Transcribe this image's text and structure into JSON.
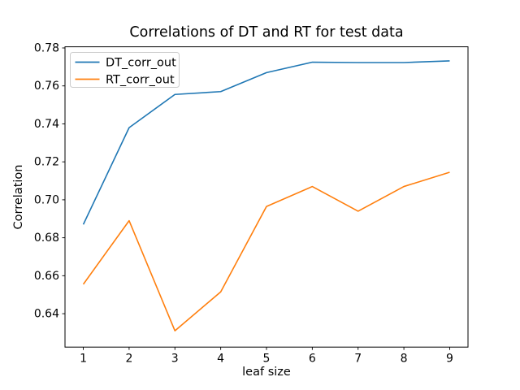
{
  "figure": {
    "background": "#ffffff"
  },
  "chart_data": {
    "type": "line",
    "title": "Correlations of DT and RT for test data",
    "xlabel": "leaf size",
    "ylabel": "Correlation",
    "x": [
      1,
      2,
      3,
      4,
      5,
      6,
      7,
      8,
      9
    ],
    "series": [
      {
        "name": "DT_corr_out",
        "color": "#1f77b4",
        "values": [
          0.687,
          0.738,
          0.7555,
          0.757,
          0.767,
          0.7725,
          0.7723,
          0.7723,
          0.7732
        ]
      },
      {
        "name": "RT_corr_out",
        "color": "#ff7f0e",
        "values": [
          0.6555,
          0.689,
          0.631,
          0.6515,
          0.6965,
          0.707,
          0.694,
          0.707,
          0.7145
        ]
      }
    ],
    "xlim": [
      0.6,
      9.4
    ],
    "ylim": [
      0.6224,
      0.7806
    ],
    "x_ticks": [
      1,
      2,
      3,
      4,
      5,
      6,
      7,
      8,
      9
    ],
    "y_ticks": [
      0.64,
      0.66,
      0.68,
      0.7,
      0.72,
      0.74,
      0.76,
      0.78
    ],
    "grid": false,
    "legend_position": "upper left",
    "axis_color": "#000000",
    "text_color": "#000000",
    "legend_border_color": "#cccccc",
    "legend_background": "#ffffff"
  }
}
